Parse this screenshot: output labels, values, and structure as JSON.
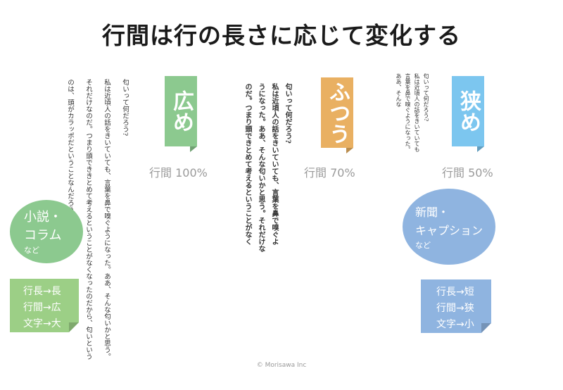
{
  "title": "行間は行の長さに応じて変化する",
  "columns": {
    "wide": {
      "tag": "広め",
      "leading_label": "行間 100%",
      "text": "匂いって何だろう?\n私は近頃人の話をきいていても、言葉を鼻で嗅ぐようになった。ああ、そんな匂いかと思う。\nそれだけなのだ。つまり頭でききとめて考えるということがなくなったのだから、匂いという\nのは、頭がカラッポだということなんだろう。",
      "accent": "#8cc98f"
    },
    "normal": {
      "tag": "ふつう",
      "leading_label": "行間 70%",
      "text": "匂いって何だろう?\n私は近頃人の話をきいていても、言葉を鼻で嗅ぐよ\nうになった。ああ、そんな匂いかと思う。それだけな\nのだ。つまり頭できとめて考えるということがなく",
      "accent": "#e9b062"
    },
    "narrow": {
      "tag": "狭め",
      "leading_label": "行間 50%",
      "text": "匂いって何だろう?\n私は近頃人の話をきいていても\n言葉を鼻で嗅ぐようになった。\nああ、そんな",
      "accent": "#7cc6ef"
    }
  },
  "callouts": {
    "novel": {
      "title": "小説・\nコラム",
      "sub": "など",
      "rules": [
        "行長→長",
        "行間→広",
        "文字→大"
      ],
      "bubble_color": "#8cc98f",
      "note_color": "#9ccf86"
    },
    "news": {
      "title": "新聞・\nキャプション",
      "sub": "など",
      "rules": [
        "行長→短",
        "行間→狭",
        "文字→小"
      ],
      "bubble_color": "#8fb4e0",
      "note_color": "#8fb4e0"
    }
  },
  "copyright": "© Morisawa Inc"
}
